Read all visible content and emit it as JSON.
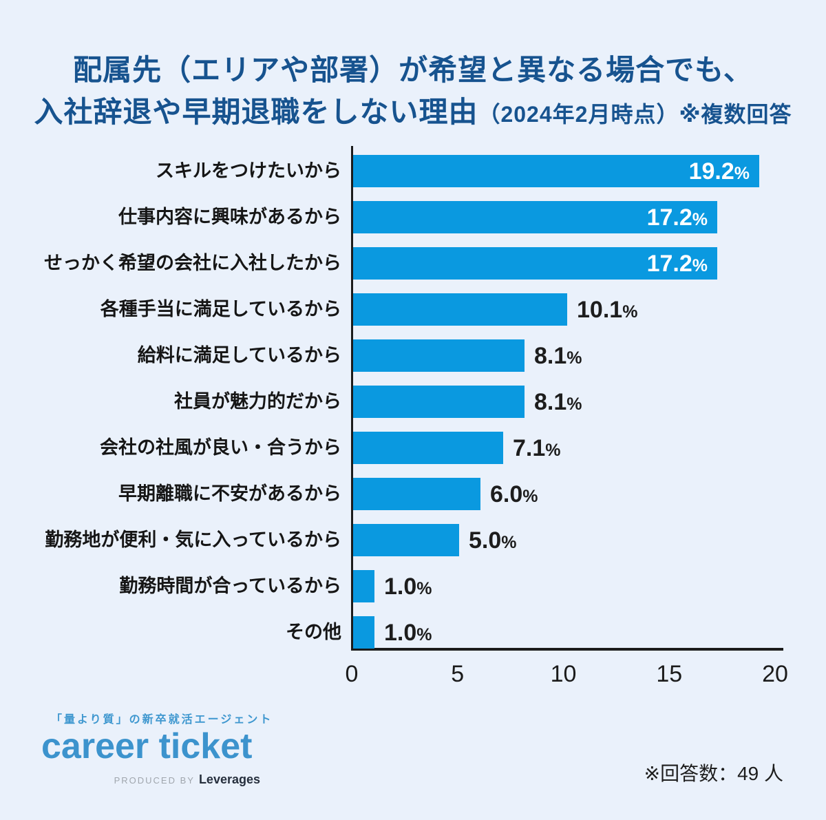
{
  "title": {
    "line1": "配属先（エリアや部署）が希望と異なる場合でも、",
    "line2_main": "入社辞退や早期退職をしない理由",
    "line2_note": "（2024年2月時点）※複数回答"
  },
  "chart_data": {
    "type": "bar",
    "orientation": "horizontal",
    "title": "配属先（エリアや部署）が希望と異なる場合でも、入社辞退や早期退職をしない理由（2024年2月時点）※複数回答",
    "categories": [
      "スキルをつけたいから",
      "仕事内容に興味があるから",
      "せっかく希望の会社に入社したから",
      "各種手当に満足しているから",
      "給料に満足しているから",
      "社員が魅力的だから",
      "会社の社風が良い・合うから",
      "早期離職に不安があるから",
      "勤務地が便利・気に入っているから",
      "勤務時間が合っているから",
      "その他"
    ],
    "values": [
      19.2,
      17.2,
      17.2,
      10.1,
      8.1,
      8.1,
      7.1,
      6.0,
      5.0,
      1.0,
      1.0
    ],
    "value_labels": [
      "19.2%",
      "17.2%",
      "17.2%",
      "10.1%",
      "8.1%",
      "8.1%",
      "7.1%",
      "6.0%",
      "5.0%",
      "1.0%",
      "1.0%"
    ],
    "label_inside": [
      true,
      true,
      true,
      false,
      false,
      false,
      false,
      false,
      false,
      false,
      false
    ],
    "x_ticks": [
      0,
      5,
      10,
      15,
      20
    ],
    "xlim": [
      0,
      20
    ],
    "xlabel": "",
    "ylabel": "",
    "grid": false,
    "legend": false,
    "bar_color": "#0a99e0",
    "unit": "%"
  },
  "footer": {
    "tagline": "「量より質」の新卒就活エージェント",
    "logo": "career ticket",
    "produced_by": "PRODUCED BY",
    "company": "Leverages",
    "note": "※回答数：49 人"
  },
  "colors": {
    "background": "#eaf1fb",
    "bar": "#0a99e0",
    "title_text": "#17538f",
    "axis_text": "#1b1b1b",
    "value_inside": "#ffffff",
    "value_outside": "#1d1d1d",
    "logo_blue": "#3c93cd"
  }
}
